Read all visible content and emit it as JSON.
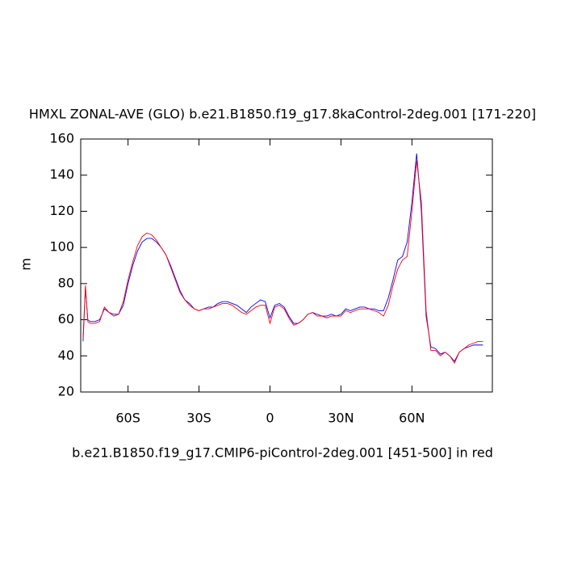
{
  "chart_data": {
    "type": "line",
    "title": "HMXL ZONAL-AVE (GLO) b.e21.B1850.f19_g17.8kaControl-2deg.001 [171-220]",
    "x_label": "b.e21.B1850.f19_g17.CMIP6-piControl-2deg.001 [451-500] in red",
    "y_label": "m",
    "x": [
      -79,
      -78,
      -77,
      -76,
      -74,
      -72,
      -70,
      -68,
      -66,
      -64,
      -62,
      -60,
      -58,
      -56,
      -54,
      -52,
      -50,
      -48,
      -46,
      -44,
      -42,
      -40,
      -38,
      -36,
      -34,
      -32,
      -30,
      -28,
      -26,
      -24,
      -22,
      -20,
      -18,
      -16,
      -14,
      -12,
      -10,
      -8,
      -6,
      -4,
      -2,
      0,
      2,
      4,
      6,
      8,
      10,
      12,
      14,
      16,
      18,
      20,
      22,
      24,
      26,
      28,
      30,
      32,
      34,
      36,
      38,
      40,
      42,
      44,
      46,
      48,
      50,
      52,
      54,
      56,
      58,
      60,
      62,
      64,
      66,
      68,
      70,
      72,
      74,
      76,
      78,
      80,
      82,
      84,
      86,
      88,
      90
    ],
    "series": [
      {
        "color": "#0000ff",
        "values": [
          48,
          78,
          60,
          59,
          59,
          60,
          66,
          64,
          63,
          63,
          68,
          80,
          90,
          98,
          103,
          105,
          105,
          103,
          100,
          96,
          90,
          83,
          76,
          71,
          69,
          66,
          65,
          66,
          67,
          67,
          69,
          70,
          70,
          69,
          68,
          66,
          64,
          67,
          69,
          71,
          70,
          61,
          68,
          69,
          67,
          62,
          58,
          58,
          60,
          63,
          64,
          63,
          62,
          62,
          63,
          62,
          63,
          66,
          65,
          66,
          67,
          67,
          66,
          66,
          65,
          65,
          72,
          82,
          93,
          95,
          103,
          125,
          152,
          120,
          62,
          45,
          44,
          41,
          42,
          40,
          37,
          42,
          44,
          45,
          46,
          46,
          46
        ]
      },
      {
        "color": "#ff0000",
        "values": [
          50,
          79,
          59,
          58,
          58,
          59,
          67,
          64,
          62,
          63,
          70,
          82,
          92,
          101,
          106,
          108,
          107,
          104,
          100,
          96,
          89,
          82,
          75,
          71,
          68,
          66,
          65,
          66,
          66,
          67,
          68,
          69,
          69,
          68,
          66,
          64,
          63,
          65,
          67,
          68,
          68,
          58,
          67,
          68,
          66,
          61,
          57,
          58,
          60,
          63,
          64,
          62,
          62,
          61,
          62,
          62,
          62,
          65,
          64,
          65,
          66,
          66,
          66,
          65,
          64,
          62,
          68,
          79,
          88,
          93,
          95,
          120,
          148,
          125,
          65,
          43,
          43,
          40,
          42,
          40,
          36,
          42,
          44,
          46,
          47,
          48,
          48
        ]
      }
    ],
    "xlim": [
      -80,
      94
    ],
    "xticks": [
      {
        "value": -60,
        "label": "60S"
      },
      {
        "value": -30,
        "label": "30S"
      },
      0,
      {
        "value": 30,
        "label": "30N"
      },
      {
        "value": 60,
        "label": "60N"
      }
    ],
    "ylim": [
      20,
      160
    ],
    "yticks": [
      20,
      40,
      60,
      80,
      100,
      120,
      140,
      160
    ]
  }
}
